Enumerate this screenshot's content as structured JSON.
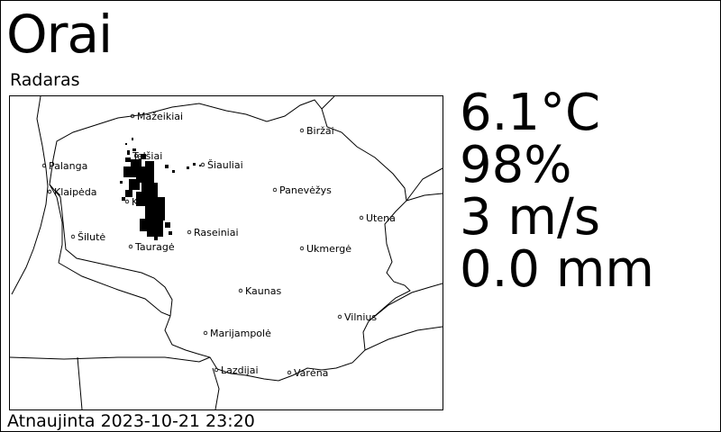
{
  "app": {
    "title": "Orai",
    "subtitle": "Radaras"
  },
  "readings": {
    "temperature": "6.1°C",
    "humidity": "98%",
    "wind": "3 m/s",
    "precipitation": "0.0 mm"
  },
  "footer": {
    "updated": "Atnaujinta 2023-10-21 23:20"
  },
  "map": {
    "cities": {
      "mazeikiai": "Mažeikiai",
      "birzai": "Biržai",
      "telsiai": "Telšiai",
      "siauliai": "Šiauliai",
      "palanga": "Palanga",
      "klaipeda": "Klaipėda",
      "panevezys": "Panevėžys",
      "raseiniai": "Raseiniai",
      "utena": "Utena",
      "silute": "Šilutė",
      "taurage": "Tauragė",
      "ukmerge": "Ukmergė",
      "kaunas": "Kaunas",
      "vilnius": "Vilnius",
      "marijampole": "Marijampolė",
      "lazdijai": "Lazdijai",
      "varena": "Varėna",
      "kelme": "Kelmė"
    },
    "colors": {
      "border": "#000000",
      "radar_echo": "#000000"
    }
  }
}
